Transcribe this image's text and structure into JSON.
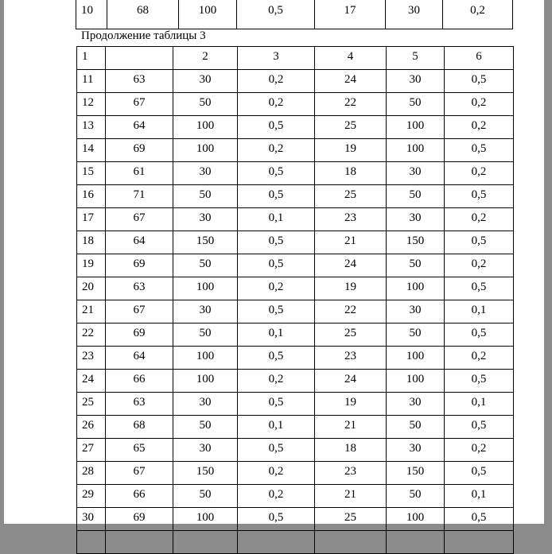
{
  "prev_table": {
    "rows": [
      [
        "10",
        "68",
        "100",
        "0,5",
        "17",
        "30",
        "0,2"
      ]
    ]
  },
  "caption": "Продолжение таблицы 3",
  "table": {
    "header": [
      "1",
      "",
      "2",
      "3",
      "4",
      "5",
      "6"
    ],
    "rows": [
      [
        "11",
        "63",
        "30",
        "0,2",
        "24",
        "30",
        "0,5"
      ],
      [
        "12",
        "67",
        "50",
        "0,2",
        "22",
        "50",
        "0,2"
      ],
      [
        "13",
        "64",
        "100",
        "0,5",
        "25",
        "100",
        "0,2"
      ],
      [
        "14",
        "69",
        "100",
        "0,2",
        "19",
        "100",
        "0,5"
      ],
      [
        "15",
        "61",
        "30",
        "0,5",
        "18",
        "30",
        "0,2"
      ],
      [
        "16",
        "71",
        "50",
        "0,5",
        "25",
        "50",
        "0,5"
      ],
      [
        "17",
        "67",
        "30",
        "0,1",
        "23",
        "30",
        "0,2"
      ],
      [
        "18",
        "64",
        "150",
        "0,5",
        "21",
        "150",
        "0,5"
      ],
      [
        "19",
        "69",
        "50",
        "0,5",
        "24",
        "50",
        "0,2"
      ],
      [
        "20",
        "63",
        "100",
        "0,2",
        "19",
        "100",
        "0,5"
      ],
      [
        "21",
        "67",
        "30",
        "0,5",
        "22",
        "30",
        "0,1"
      ],
      [
        "22",
        "69",
        "50",
        "0,1",
        "25",
        "50",
        "0,5"
      ],
      [
        "23",
        "64",
        "100",
        "0,5",
        "23",
        "100",
        "0,2"
      ],
      [
        "24",
        "66",
        "100",
        "0,2",
        "24",
        "100",
        "0,5"
      ],
      [
        "25",
        "63",
        "30",
        "0,5",
        "19",
        "30",
        "0,1"
      ],
      [
        "26",
        "68",
        "50",
        "0,1",
        "21",
        "50",
        "0,5"
      ],
      [
        "27",
        "65",
        "30",
        "0,5",
        "18",
        "30",
        "0,2"
      ],
      [
        "28",
        "67",
        "150",
        "0,2",
        "23",
        "150",
        "0,5"
      ],
      [
        "29",
        "66",
        "50",
        "0,2",
        "21",
        "50",
        "0,1"
      ],
      [
        "30",
        "69",
        "100",
        "0,5",
        "25",
        "100",
        "0,5"
      ],
      [
        "",
        "",
        "",
        "",
        "",
        "",
        ""
      ]
    ]
  }
}
